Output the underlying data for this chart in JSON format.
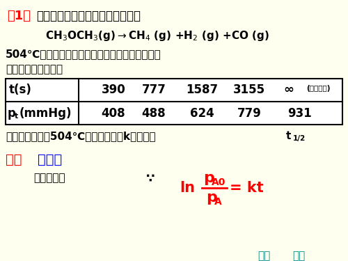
{
  "bg_color": "#FFFFF0",
  "line1_red": "例1：",
  "line1_black": "二甲醚的气相分解反应是一级反应",
  "cond1": "504℃时把二甲醚充入真空反应球内，测量球内压",
  "cond2": "力的变化数据如下：",
  "t_header": "t(s)",
  "pt_header": "pₜ(mmHg)",
  "t_vals": [
    "390",
    "777",
    "1587",
    "3155"
  ],
  "t_inf": "∞",
  "t_note": "(完全分解)",
  "p_vals": [
    "408",
    "488",
    "624",
    "779",
    "931"
  ],
  "question1": "试计算该反应在504℃时的速率常数k及半衰期",
  "question_t": "t",
  "question_sub": "1/2",
  "ans_label": "解：",
  "method": "方法一",
  "first_order": "一级反应：",
  "therefore": "∵",
  "nav_color": "#008B8B",
  "nav_prev": "上页",
  "nav_next": "下页"
}
